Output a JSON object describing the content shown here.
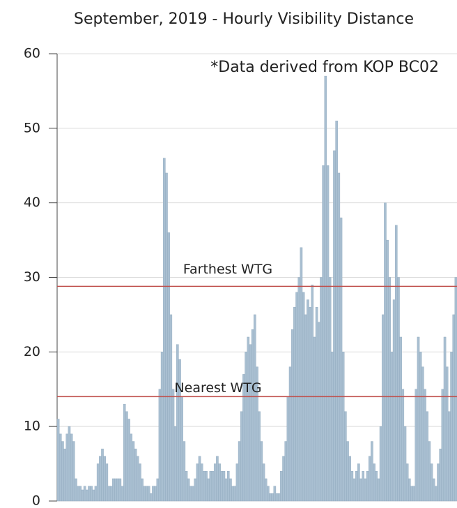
{
  "chart_data": {
    "type": "bar",
    "title": "September, 2019 - Hourly Visibility Distance",
    "annotation": "*Data derived from KOP BC02",
    "color": "#a9bfd1",
    "values": [
      11,
      9,
      8,
      7,
      9,
      10,
      9,
      8,
      3,
      2,
      2,
      1.5,
      2,
      1.5,
      2,
      2,
      1.5,
      2,
      5,
      6,
      7,
      6,
      5,
      2,
      2,
      3,
      3,
      3,
      3,
      2,
      13,
      12,
      11,
      9,
      8,
      7,
      6,
      5,
      3,
      2,
      2,
      2,
      1,
      2,
      2,
      3,
      15,
      20,
      46,
      44,
      36,
      25,
      15,
      10,
      21,
      19,
      14,
      8,
      4,
      3,
      2,
      2,
      3,
      5,
      6,
      5,
      4,
      4,
      3,
      4,
      4,
      5,
      6,
      5,
      4,
      4,
      3,
      4,
      3,
      2,
      2,
      5,
      8,
      12,
      17,
      20,
      22,
      21,
      23,
      25,
      18,
      12,
      8,
      5,
      3,
      2,
      1,
      1,
      2,
      1,
      1,
      4,
      6,
      8,
      14,
      18,
      23,
      26,
      28,
      30,
      34,
      28,
      25,
      27,
      26,
      29,
      22,
      26,
      24,
      30,
      45,
      57,
      45,
      30,
      20,
      47,
      51,
      44,
      38,
      20,
      12,
      8,
      6,
      4,
      3,
      4,
      5,
      3,
      4,
      3,
      4,
      6,
      8,
      5,
      4,
      3,
      10,
      25,
      40,
      35,
      30,
      20,
      27,
      37,
      30,
      22,
      15,
      10,
      5,
      3,
      2,
      2,
      15,
      22,
      20,
      18,
      15,
      12,
      8,
      5,
      3,
      2,
      5,
      7,
      15,
      22,
      18,
      12,
      20,
      25,
      30
    ],
    "reference_lines": [
      {
        "label": "Farthest WTG",
        "value": 28.8,
        "color": "#c0504d"
      },
      {
        "label": "Nearest WTG",
        "value": 14,
        "color": "#c0504d"
      }
    ],
    "ylim": [
      0,
      60
    ],
    "yticks": [
      0,
      10,
      20,
      30,
      40,
      50,
      60
    ],
    "grid": true
  }
}
